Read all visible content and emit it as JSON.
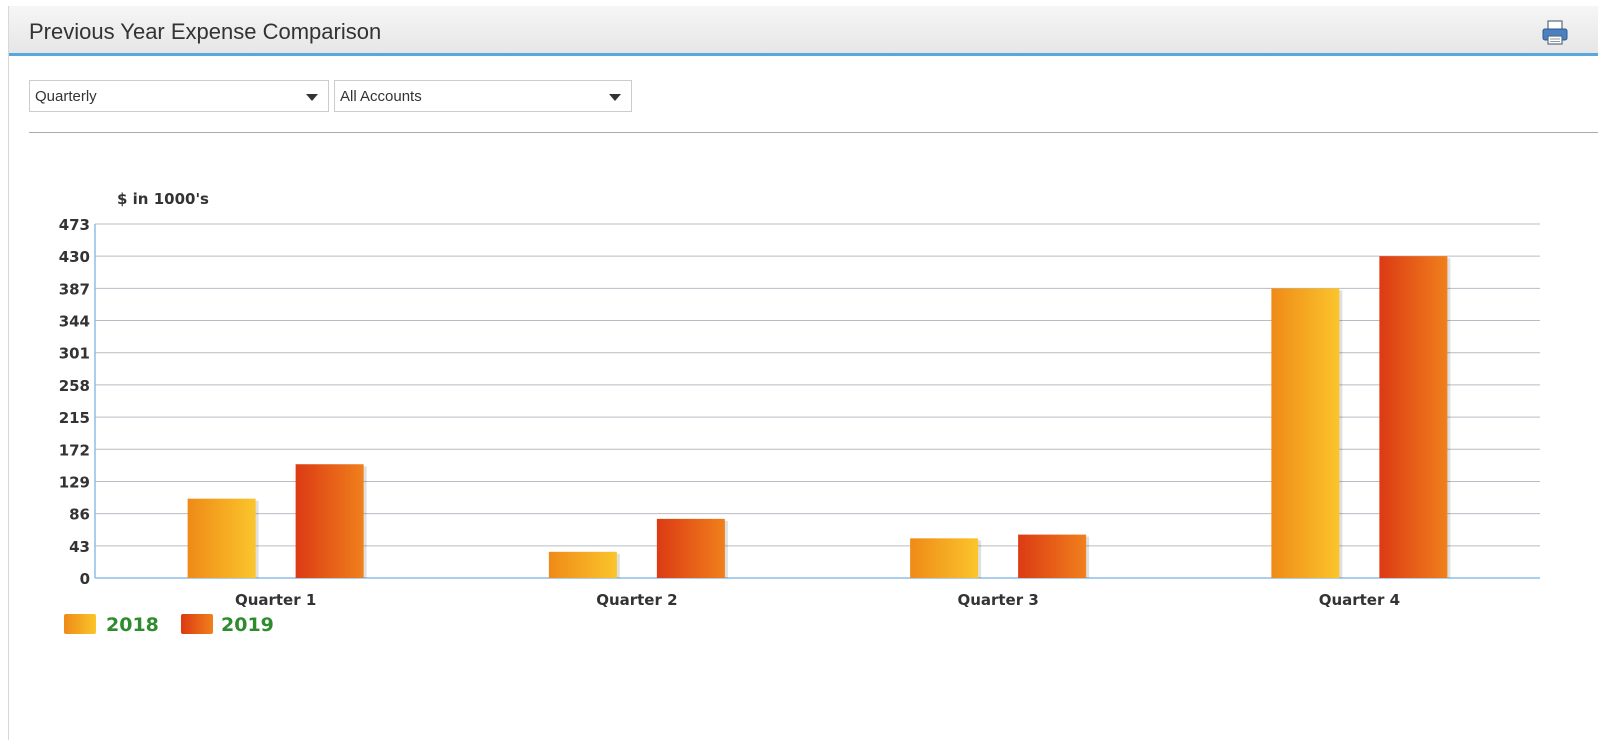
{
  "panel": {
    "title": "Previous Year Expense Comparison",
    "print_icon": "printer-icon"
  },
  "filters": {
    "period": {
      "value": "Quarterly"
    },
    "accounts": {
      "value": "All Accounts"
    }
  },
  "colors": {
    "s2018_light": "#f9c22b",
    "s2018_dark": "#ef8a17",
    "s2019_light": "#f07a1a",
    "s2019_dark": "#dc3a14",
    "legend_text": "#2e8b2e",
    "grid": "#b8bcc4",
    "axis": "#8fbde6"
  },
  "chart_data": {
    "type": "bar",
    "ylabel": "$ in 1000's",
    "categories": [
      "Quarter 1",
      "Quarter 2",
      "Quarter 3",
      "Quarter 4"
    ],
    "series": [
      {
        "name": "2018",
        "values": [
          106,
          35,
          53,
          387
        ]
      },
      {
        "name": "2019",
        "values": [
          152,
          79,
          58,
          430
        ]
      }
    ],
    "yticks": [
      0,
      43,
      86,
      129,
      172,
      215,
      258,
      301,
      344,
      387,
      430,
      473
    ],
    "ylim": [
      0,
      473
    ],
    "grid": true,
    "legend": "bottom-left"
  }
}
